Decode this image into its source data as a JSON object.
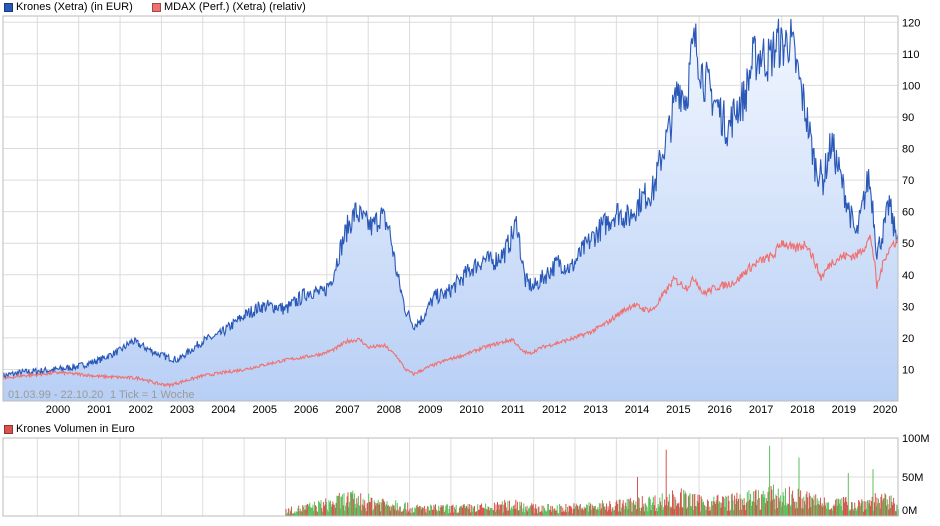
{
  "legend_top": [
    {
      "label": "Krones (Xetra) (in EUR)",
      "color": "#2a58b8"
    },
    {
      "label": "MDAX (Perf.) (Xetra) (relativ)",
      "color": "#f07070"
    }
  ],
  "legend_bottom": {
    "label": "Krones Volumen in Euro",
    "color": "#d9534f"
  },
  "footnote": {
    "range": "01.03.99 - 22.10.20",
    "tick": "1 Tick = 1 Woche"
  },
  "chart_data": [
    {
      "type": "line",
      "x_ticks": [
        "2000",
        "2001",
        "2002",
        "2003",
        "2004",
        "2005",
        "2006",
        "2007",
        "2008",
        "2009",
        "2010",
        "2011",
        "2012",
        "2013",
        "2014",
        "2015",
        "2016",
        "2017",
        "2018",
        "2019",
        "2020"
      ],
      "y_ticks": [
        "10",
        "20",
        "30",
        "40",
        "50",
        "60",
        "70",
        "80",
        "90",
        "100",
        "110",
        "120"
      ],
      "ylim": [
        0,
        122
      ],
      "xlim": [
        1999.17,
        2020.81
      ],
      "grid": true,
      "legend": "top-left",
      "series": [
        {
          "name": "Krones (Xetra) (in EUR)",
          "color": "#2a58b8",
          "area": true,
          "points": [
            [
              1999.17,
              8
            ],
            [
              1999.6,
              9
            ],
            [
              2000.0,
              9.5
            ],
            [
              2000.5,
              10
            ],
            [
              2001.0,
              11
            ],
            [
              2001.5,
              13
            ],
            [
              2002.0,
              16
            ],
            [
              2002.3,
              19
            ],
            [
              2002.6,
              17
            ],
            [
              2002.9,
              15
            ],
            [
              2003.1,
              14
            ],
            [
              2003.4,
              13
            ],
            [
              2003.7,
              16
            ],
            [
              2004.0,
              19
            ],
            [
              2004.4,
              21
            ],
            [
              2004.7,
              24
            ],
            [
              2005.0,
              27
            ],
            [
              2005.4,
              30
            ],
            [
              2005.8,
              30
            ],
            [
              2006.0,
              29
            ],
            [
              2006.3,
              32
            ],
            [
              2006.6,
              35
            ],
            [
              2006.9,
              34
            ],
            [
              2007.1,
              38
            ],
            [
              2007.3,
              47
            ],
            [
              2007.5,
              55
            ],
            [
              2007.7,
              60
            ],
            [
              2007.9,
              57
            ],
            [
              2008.1,
              55
            ],
            [
              2008.3,
              59
            ],
            [
              2008.5,
              55
            ],
            [
              2008.7,
              40
            ],
            [
              2008.9,
              29
            ],
            [
              2009.1,
              24
            ],
            [
              2009.3,
              26
            ],
            [
              2009.6,
              33
            ],
            [
              2009.9,
              34
            ],
            [
              2010.2,
              38
            ],
            [
              2010.5,
              42
            ],
            [
              2010.8,
              45
            ],
            [
              2011.0,
              44
            ],
            [
              2011.3,
              47
            ],
            [
              2011.5,
              53
            ],
            [
              2011.6,
              57
            ],
            [
              2011.7,
              46
            ],
            [
              2011.8,
              38
            ],
            [
              2012.0,
              36
            ],
            [
              2012.3,
              40
            ],
            [
              2012.6,
              44
            ],
            [
              2012.9,
              42
            ],
            [
              2013.2,
              48
            ],
            [
              2013.5,
              53
            ],
            [
              2013.8,
              57
            ],
            [
              2014.0,
              60
            ],
            [
              2014.3,
              58
            ],
            [
              2014.6,
              64
            ],
            [
              2014.9,
              67
            ],
            [
              2015.1,
              78
            ],
            [
              2015.3,
              87
            ],
            [
              2015.5,
              100
            ],
            [
              2015.7,
              96
            ],
            [
              2015.8,
              108
            ],
            [
              2015.9,
              114
            ],
            [
              2016.1,
              103
            ],
            [
              2016.3,
              97
            ],
            [
              2016.5,
              92
            ],
            [
              2016.7,
              86
            ],
            [
              2016.9,
              93
            ],
            [
              2017.1,
              96
            ],
            [
              2017.3,
              108
            ],
            [
              2017.5,
              110
            ],
            [
              2017.7,
              108
            ],
            [
              2017.9,
              114
            ],
            [
              2018.0,
              112
            ],
            [
              2018.2,
              115
            ],
            [
              2018.4,
              103
            ],
            [
              2018.6,
              90
            ],
            [
              2018.8,
              75
            ],
            [
              2019.0,
              70
            ],
            [
              2019.2,
              82
            ],
            [
              2019.4,
              72
            ],
            [
              2019.6,
              62
            ],
            [
              2019.8,
              52
            ],
            [
              2019.9,
              58
            ],
            [
              2020.1,
              71
            ],
            [
              2020.2,
              62
            ],
            [
              2020.3,
              47
            ],
            [
              2020.5,
              56
            ],
            [
              2020.6,
              63
            ],
            [
              2020.7,
              55
            ],
            [
              2020.81,
              53
            ]
          ]
        },
        {
          "name": "MDAX (Perf.) (Xetra) (relativ)",
          "color": "#f07070",
          "area": false,
          "points": [
            [
              1999.17,
              7
            ],
            [
              1999.6,
              8
            ],
            [
              2000.0,
              8.3
            ],
            [
              2000.5,
              9
            ],
            [
              2001.0,
              8.5
            ],
            [
              2001.5,
              7.8
            ],
            [
              2002.0,
              7.5
            ],
            [
              2002.5,
              7.2
            ],
            [
              2002.9,
              5.5
            ],
            [
              2003.2,
              5
            ],
            [
              2003.6,
              6.5
            ],
            [
              2004.0,
              8
            ],
            [
              2004.5,
              9
            ],
            [
              2005.0,
              10
            ],
            [
              2005.5,
              11.5
            ],
            [
              2006.0,
              13
            ],
            [
              2006.5,
              14
            ],
            [
              2006.9,
              15
            ],
            [
              2007.2,
              16.5
            ],
            [
              2007.5,
              19
            ],
            [
              2007.8,
              19.5
            ],
            [
              2008.0,
              17
            ],
            [
              2008.4,
              17.5
            ],
            [
              2008.7,
              14
            ],
            [
              2008.9,
              10
            ],
            [
              2009.1,
              8.5
            ],
            [
              2009.5,
              11
            ],
            [
              2009.9,
              13
            ],
            [
              2010.3,
              14.5
            ],
            [
              2010.8,
              17
            ],
            [
              2011.2,
              18.5
            ],
            [
              2011.5,
              19.5
            ],
            [
              2011.7,
              16
            ],
            [
              2011.9,
              15
            ],
            [
              2012.2,
              17
            ],
            [
              2012.6,
              18.5
            ],
            [
              2013.0,
              20
            ],
            [
              2013.4,
              22
            ],
            [
              2013.8,
              25
            ],
            [
              2014.1,
              28
            ],
            [
              2014.4,
              30.5
            ],
            [
              2014.7,
              29
            ],
            [
              2014.9,
              29
            ],
            [
              2015.1,
              33
            ],
            [
              2015.4,
              38.5
            ],
            [
              2015.7,
              36
            ],
            [
              2015.9,
              39
            ],
            [
              2016.1,
              34
            ],
            [
              2016.4,
              36
            ],
            [
              2016.7,
              37
            ],
            [
              2016.9,
              38
            ],
            [
              2017.2,
              42
            ],
            [
              2017.5,
              44.5
            ],
            [
              2017.8,
              46
            ],
            [
              2018.0,
              50.5
            ],
            [
              2018.3,
              48
            ],
            [
              2018.6,
              50
            ],
            [
              2018.8,
              44
            ],
            [
              2018.95,
              39
            ],
            [
              2019.2,
              44
            ],
            [
              2019.5,
              46
            ],
            [
              2019.8,
              46
            ],
            [
              2020.0,
              49
            ],
            [
              2020.15,
              52
            ],
            [
              2020.25,
              43
            ],
            [
              2020.3,
              36
            ],
            [
              2020.5,
              46
            ],
            [
              2020.7,
              50
            ],
            [
              2020.81,
              51
            ]
          ]
        }
      ]
    },
    {
      "type": "bar",
      "title": "Krones Volumen in Euro",
      "y_ticks": [
        "0M",
        "50M",
        "100M"
      ],
      "ylim": [
        0,
        100
      ],
      "x_range": [
        2006.0,
        2020.81
      ],
      "colors": {
        "up": "#5cc05c",
        "down": "#d9534f"
      },
      "note": "weekly volume bars starting around 2006, mostly 5M-45M, peaks near 85M in 2015 and 2017-2018",
      "profile": [
        [
          2006.0,
          6
        ],
        [
          2007.0,
          14
        ],
        [
          2007.5,
          20
        ],
        [
          2008.0,
          17
        ],
        [
          2008.7,
          15
        ],
        [
          2009.0,
          9
        ],
        [
          2010.0,
          9
        ],
        [
          2011.0,
          10
        ],
        [
          2011.6,
          15
        ],
        [
          2012.0,
          9
        ],
        [
          2013.0,
          10
        ],
        [
          2014.0,
          13
        ],
        [
          2015.0,
          17
        ],
        [
          2015.5,
          22
        ],
        [
          2016.0,
          16
        ],
        [
          2017.0,
          18
        ],
        [
          2017.7,
          24
        ],
        [
          2018.3,
          22
        ],
        [
          2019.0,
          16
        ],
        [
          2019.8,
          14
        ],
        [
          2020.3,
          19
        ],
        [
          2020.81,
          14
        ]
      ],
      "peaks": [
        [
          2015.2,
          85
        ],
        [
          2017.7,
          90
        ],
        [
          2018.4,
          75
        ],
        [
          2014.5,
          50
        ],
        [
          2019.6,
          55
        ],
        [
          2020.2,
          60
        ]
      ]
    }
  ]
}
